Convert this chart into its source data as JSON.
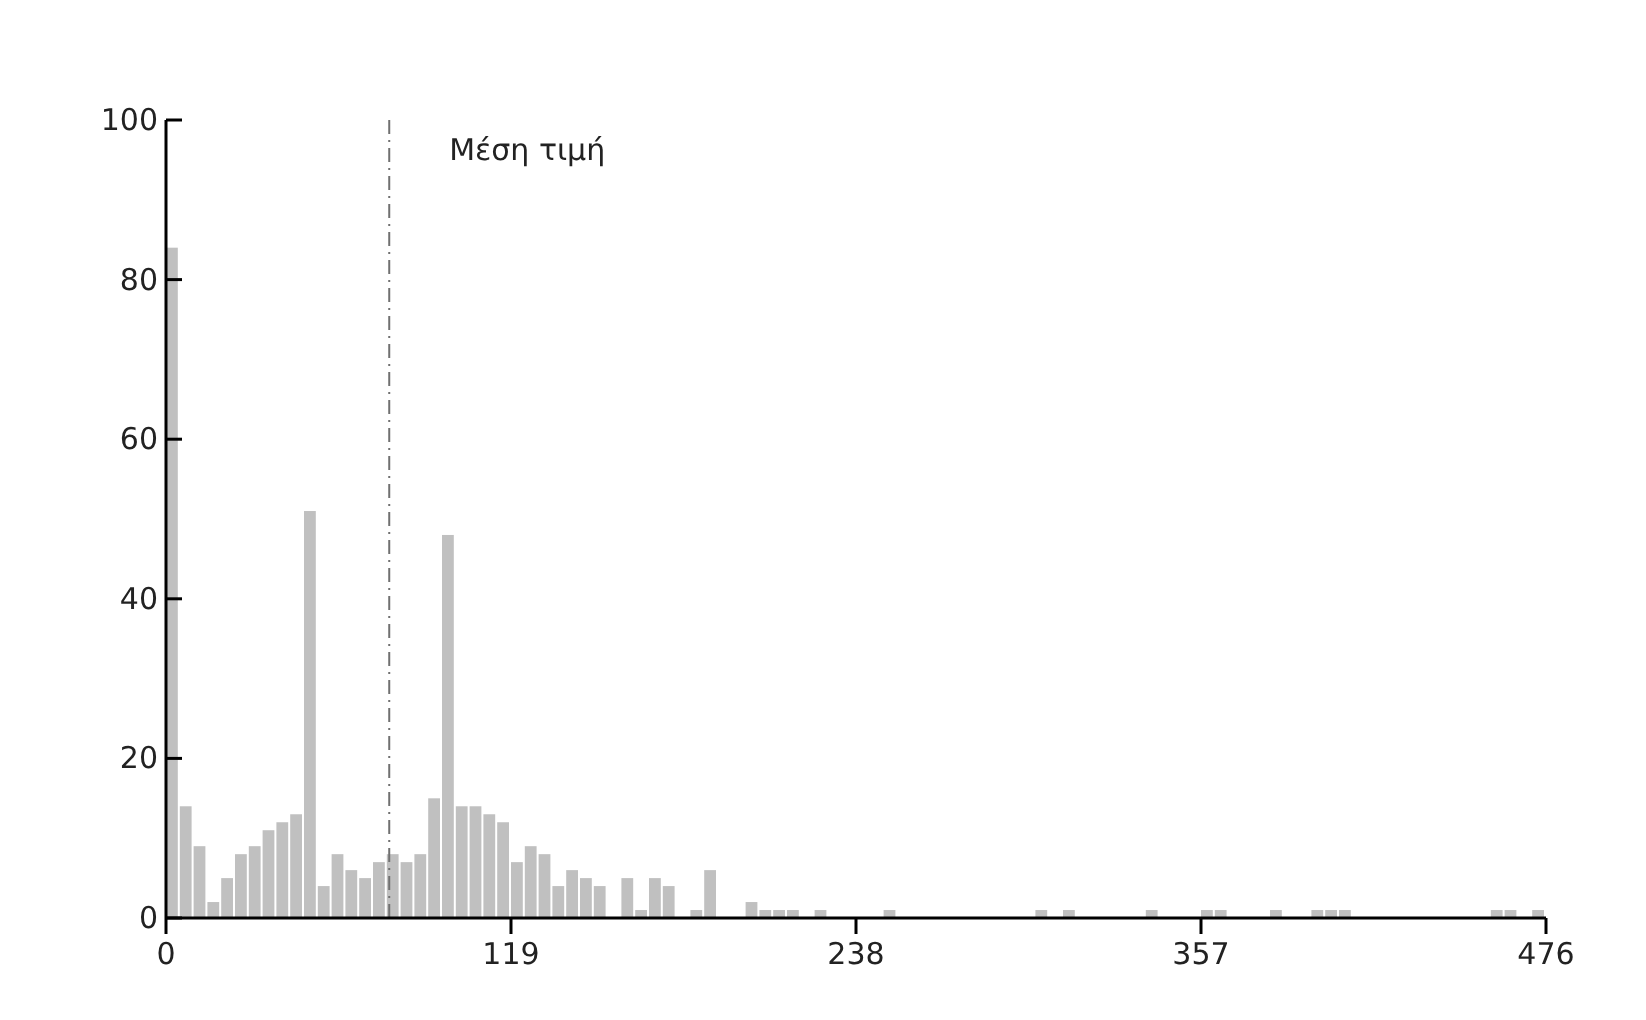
{
  "chart_data": {
    "type": "histogram",
    "bins": [
      0,
      4.76,
      9.52,
      14.28,
      19.04,
      23.8,
      28.56,
      33.32,
      38.08,
      42.84,
      47.6,
      52.36,
      57.12,
      61.88,
      66.64,
      71.4,
      76.16,
      80.92,
      85.68,
      90.44,
      95.2,
      99.96,
      104.72,
      109.48,
      114.24,
      119,
      123.76,
      128.52,
      133.28,
      138.04,
      142.8,
      147.56,
      152.32,
      157.08,
      161.84,
      166.6,
      171.36,
      176.12,
      180.88,
      185.64,
      190.4,
      195.16,
      199.92,
      204.68,
      209.44,
      214.2,
      218.96,
      223.72,
      228.48,
      233.24,
      238,
      242.76,
      247.52,
      252.28,
      257.04,
      261.8,
      266.56,
      271.32,
      276.08,
      280.84,
      285.6,
      290.36,
      295.12,
      299.88,
      304.64,
      309.4,
      314.16,
      318.92,
      323.68,
      328.44,
      333.2,
      337.96,
      342.72,
      347.48,
      352.24,
      357,
      361.76,
      366.52,
      371.28,
      376.04,
      380.8,
      385.56,
      390.32,
      395.08,
      399.84,
      404.6,
      409.36,
      414.12,
      418.88,
      423.64,
      428.4,
      433.16,
      437.92,
      442.68,
      447.44,
      452.2,
      456.96,
      461.72,
      466.48,
      471.24,
      476
    ],
    "values": [
      84,
      14,
      9,
      2,
      5,
      8,
      9,
      11,
      12,
      13,
      51,
      4,
      8,
      6,
      5,
      7,
      8,
      7,
      8,
      15,
      48,
      14,
      14,
      13,
      12,
      7,
      9,
      8,
      4,
      6,
      5,
      4,
      0,
      5,
      1,
      5,
      4,
      0,
      1,
      6,
      0,
      0,
      2,
      1,
      1,
      1,
      0,
      1,
      0,
      0,
      0,
      0,
      1,
      0,
      0,
      0,
      0,
      0,
      0,
      0,
      0,
      0,
      0,
      1,
      0,
      1,
      0,
      0,
      0,
      0,
      0,
      1,
      0,
      0,
      0,
      1,
      1,
      0,
      0,
      0,
      1,
      0,
      0,
      1,
      1,
      1,
      0,
      0,
      0,
      0,
      0,
      0,
      0,
      0,
      0,
      0,
      1,
      1,
      0,
      1
    ],
    "color": "#c0c0c0",
    "xlim": [
      0,
      476
    ],
    "xticks": [
      0,
      119,
      238,
      357,
      476
    ],
    "ylim": [
      0,
      100
    ],
    "yticks": [
      0,
      20,
      40,
      60,
      80,
      100
    ],
    "ref_lines": [
      {
        "axis": "x",
        "value": 77,
        "label": "Μέση τιμή",
        "color": "#707070",
        "line_style": "dashdot"
      }
    ],
    "grid": false
  }
}
